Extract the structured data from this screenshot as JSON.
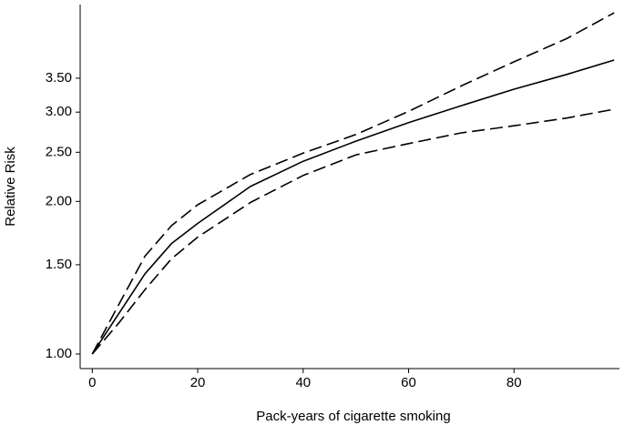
{
  "chart_data": {
    "type": "line",
    "x_label": "Pack-years of cigarette smoking",
    "y_label": "Relative Risk",
    "x": [
      0,
      5,
      10,
      15,
      20,
      30,
      40,
      50,
      60,
      70,
      80,
      90,
      99
    ],
    "series": [
      {
        "color": "#000000",
        "dash": false,
        "values": [
          1.0,
          1.2,
          1.44,
          1.65,
          1.81,
          2.14,
          2.4,
          2.63,
          2.86,
          3.09,
          3.33,
          3.56,
          3.8
        ]
      },
      {
        "color": "#000000",
        "dash": true,
        "values": [
          1.0,
          1.25,
          1.56,
          1.79,
          1.97,
          2.26,
          2.49,
          2.71,
          3.01,
          3.38,
          3.77,
          4.19,
          4.71
        ]
      },
      {
        "color": "#000000",
        "dash": true,
        "values": [
          1.0,
          1.15,
          1.34,
          1.54,
          1.7,
          1.99,
          2.25,
          2.47,
          2.6,
          2.73,
          2.82,
          2.92,
          3.04
        ]
      }
    ],
    "xlim": [
      -2.3,
      100
    ],
    "ylim": [
      0.936,
      4.89
    ],
    "y_log": true,
    "xticks": [
      0,
      20,
      40,
      60,
      80
    ],
    "yticks": [
      {
        "value": 1,
        "label": "1.00"
      },
      {
        "value": 1.5,
        "label": "1.50"
      },
      {
        "value": 2,
        "label": "2.00"
      },
      {
        "value": 2.5,
        "label": "2.50"
      },
      {
        "value": 3,
        "label": "3.00"
      },
      {
        "value": 3.5,
        "label": "3.50"
      }
    ]
  }
}
